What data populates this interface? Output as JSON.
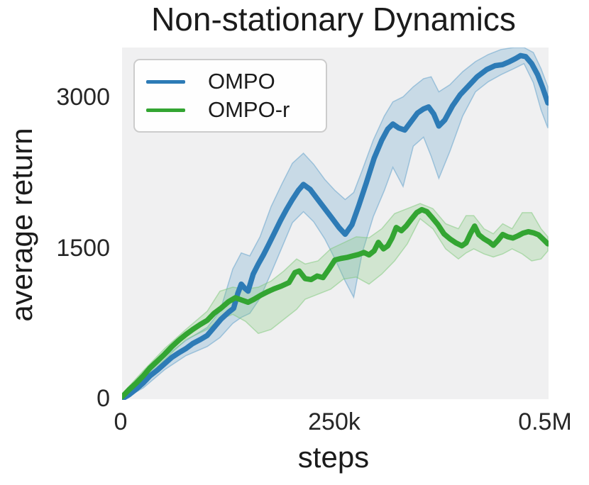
{
  "figure": {
    "background": "#ffffff",
    "plot_background": "#f0f0f1",
    "text_color": "#1b1b1b"
  },
  "chart_data": {
    "type": "line",
    "title": "Non-stationary Dynamics",
    "xlabel": "steps",
    "ylabel": "average return",
    "xlim": [
      0,
      500000
    ],
    "ylim": [
      0,
      3500
    ],
    "grid": false,
    "legend_position": "upper left",
    "xticks": [
      {
        "label": "0",
        "value": 0
      },
      {
        "label": "250k",
        "value": 250000
      },
      {
        "label": "0.5M",
        "value": 500000
      }
    ],
    "yticks": [
      {
        "label": "3000",
        "value": 3000
      },
      {
        "label": "1500",
        "value": 1500
      },
      {
        "label": "0",
        "value": 0
      }
    ],
    "x_units": "steps (x_k arrays are in thousands of steps)",
    "series": [
      {
        "name": "OMPO",
        "color": "#2d7bb6",
        "band_color": "#5b9ec9",
        "x_k": [
          0,
          8,
          17,
          25,
          33,
          42,
          50,
          58,
          67,
          75,
          83,
          92,
          100,
          108,
          116,
          125,
          131,
          136,
          140,
          144,
          148,
          154,
          160,
          166,
          172,
          179,
          186,
          193,
          200,
          207,
          213,
          221,
          229,
          238,
          247,
          255,
          262,
          270,
          278,
          287,
          296,
          305,
          312,
          318,
          325,
          332,
          339,
          347,
          354,
          360,
          366,
          372,
          379,
          388,
          397,
          407,
          417,
          428,
          438,
          447,
          455,
          462,
          468,
          474,
          481,
          488,
          494,
          500
        ],
        "y": [
          10,
          50,
          110,
          170,
          240,
          300,
          360,
          420,
          470,
          510,
          560,
          600,
          640,
          720,
          800,
          870,
          910,
          1060,
          1150,
          1110,
          1080,
          1250,
          1350,
          1440,
          1540,
          1660,
          1780,
          1890,
          1990,
          2080,
          2140,
          2090,
          2000,
          1900,
          1800,
          1710,
          1645,
          1740,
          1930,
          2160,
          2400,
          2580,
          2690,
          2740,
          2700,
          2680,
          2760,
          2850,
          2890,
          2910,
          2840,
          2720,
          2780,
          2920,
          3030,
          3120,
          3210,
          3280,
          3320,
          3330,
          3360,
          3390,
          3420,
          3410,
          3340,
          3230,
          3100,
          2950
        ],
        "band": {
          "x_k": [
            0,
            25,
            50,
            75,
            100,
            115,
            130,
            140,
            150,
            162,
            175,
            188,
            200,
            213,
            225,
            238,
            250,
            262,
            272,
            282,
            295,
            308,
            318,
            330,
            342,
            354,
            363,
            372,
            385,
            400,
            415,
            430,
            445,
            460,
            472,
            483,
            492,
            500
          ],
          "upper": [
            40,
            210,
            430,
            590,
            720,
            880,
            1300,
            1460,
            1430,
            1620,
            1920,
            2150,
            2350,
            2450,
            2340,
            2190,
            2080,
            1990,
            2060,
            2280,
            2580,
            2820,
            2960,
            3010,
            3110,
            3190,
            3210,
            3060,
            3130,
            3260,
            3360,
            3430,
            3480,
            3500,
            3500,
            3450,
            3290,
            3110
          ],
          "lower": [
            0,
            120,
            300,
            440,
            530,
            620,
            760,
            820,
            860,
            1010,
            1260,
            1520,
            1760,
            1870,
            1770,
            1600,
            1400,
            1180,
            1020,
            1460,
            1820,
            2080,
            2310,
            2120,
            2520,
            2610,
            2420,
            2200,
            2470,
            2820,
            3060,
            3160,
            3230,
            3290,
            3340,
            3150,
            2880,
            2700
          ]
        }
      },
      {
        "name": "OMPO-r",
        "color": "#33a532",
        "band_color": "#7cc878",
        "x_k": [
          0,
          8,
          17,
          25,
          33,
          42,
          50,
          58,
          67,
          75,
          83,
          92,
          100,
          108,
          116,
          125,
          133,
          141,
          148,
          155,
          163,
          171,
          179,
          187,
          196,
          203,
          208,
          215,
          222,
          229,
          236,
          243,
          250,
          257,
          264,
          271,
          278,
          284,
          290,
          296,
          301,
          307,
          312,
          317,
          322,
          328,
          334,
          340,
          346,
          352,
          358,
          364,
          371,
          378,
          385,
          392,
          399,
          404,
          409,
          414,
          419,
          425,
          431,
          436,
          441,
          447,
          453,
          459,
          465,
          471,
          477,
          483,
          489,
          494,
          500
        ],
        "y": [
          30,
          100,
          170,
          240,
          320,
          390,
          455,
          525,
          595,
          650,
          700,
          750,
          790,
          860,
          910,
          975,
          1015,
          990,
          970,
          1000,
          1040,
          1075,
          1105,
          1130,
          1165,
          1265,
          1280,
          1205,
          1195,
          1230,
          1215,
          1300,
          1390,
          1405,
          1415,
          1430,
          1445,
          1465,
          1440,
          1480,
          1565,
          1500,
          1530,
          1607,
          1713,
          1680,
          1730,
          1798,
          1860,
          1890,
          1870,
          1812,
          1740,
          1650,
          1600,
          1560,
          1530,
          1560,
          1650,
          1727,
          1640,
          1600,
          1570,
          1536,
          1580,
          1643,
          1620,
          1608,
          1630,
          1657,
          1671,
          1660,
          1640,
          1600,
          1550
        ],
        "band": {
          "x_k": [
            0,
            25,
            50,
            75,
            100,
            115,
            130,
            145,
            160,
            175,
            190,
            205,
            215,
            230,
            245,
            260,
            275,
            290,
            305,
            320,
            335,
            350,
            365,
            380,
            395,
            404,
            413,
            425,
            436,
            447,
            458,
            470,
            481,
            492,
            500
          ],
          "upper": [
            60,
            290,
            510,
            700,
            880,
            1080,
            1120,
            1100,
            1120,
            1180,
            1280,
            1400,
            1350,
            1380,
            1500,
            1560,
            1620,
            1610,
            1700,
            1850,
            1900,
            1950,
            1900,
            1750,
            1700,
            1830,
            1830,
            1700,
            1650,
            1750,
            1700,
            1860,
            1860,
            1700,
            1620
          ],
          "lower": [
            10,
            190,
            400,
            600,
            700,
            800,
            850,
            780,
            660,
            700,
            800,
            900,
            1000,
            1050,
            1100,
            1200,
            1220,
            1150,
            1250,
            1380,
            1550,
            1800,
            1700,
            1500,
            1400,
            1460,
            1500,
            1450,
            1420,
            1450,
            1500,
            1450,
            1380,
            1400,
            1480
          ]
        }
      }
    ]
  }
}
